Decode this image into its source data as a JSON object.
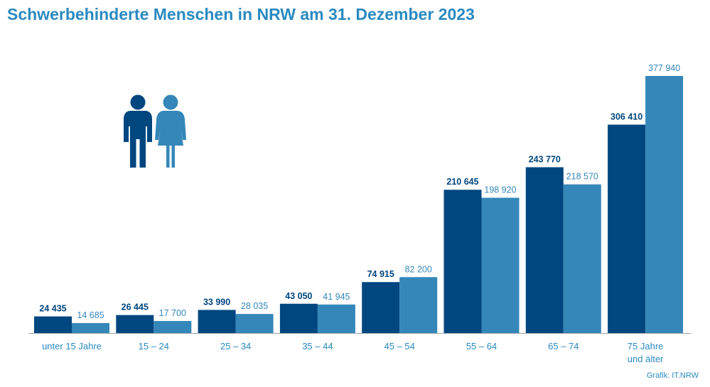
{
  "title": "Schwerbehinderte Menschen in NRW am 31. Dezember 2023",
  "credit": "Grafik: IT.NRW",
  "colors": {
    "men": "#00467f",
    "women": "#3587b9",
    "axis": "#9aa3ab",
    "title": "#2a8ac0"
  },
  "legend": {
    "men_icon": "man-figure-icon",
    "women_icon": "woman-figure-icon"
  },
  "chart_data": {
    "type": "bar",
    "title": "Schwerbehinderte Menschen in NRW am 31. Dezember 2023",
    "categories": [
      [
        "unter 15 Jahre"
      ],
      [
        "15 – 24"
      ],
      [
        "25 – 34"
      ],
      [
        "35 – 44"
      ],
      [
        "45 – 54"
      ],
      [
        "55 – 64"
      ],
      [
        "65 – 74"
      ],
      [
        "75 Jahre",
        "und älter"
      ]
    ],
    "series": [
      {
        "values": [
          24435,
          26445,
          33990,
          43050,
          74915,
          210645,
          243770,
          306410
        ],
        "labels": [
          "24 435",
          "26 445",
          "33 990",
          "43 050",
          "74 915",
          "210 645",
          "243 770",
          "306 410"
        ]
      },
      {
        "values": [
          14685,
          17700,
          28035,
          41945,
          82200,
          198920,
          218570,
          377940
        ],
        "labels": [
          "14 685",
          "17 700",
          "28 035",
          "41 945",
          "82 200",
          "198 920",
          "218 570",
          "377 940"
        ]
      }
    ],
    "ylim": [
      0,
      377940
    ],
    "legend": "icons, top-left",
    "grid": false
  }
}
